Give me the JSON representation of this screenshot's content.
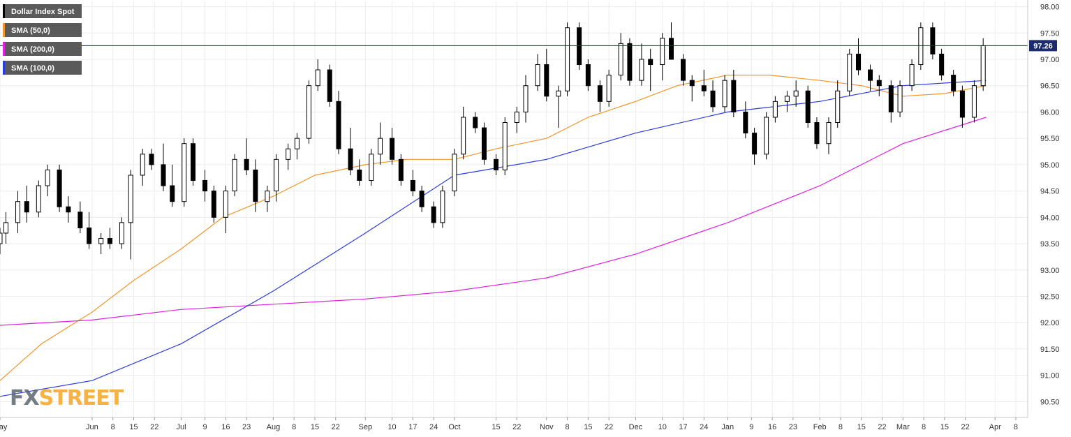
{
  "chart_data": {
    "type": "candlestick",
    "title": "",
    "xlabel": "",
    "ylabel": "",
    "ylim": [
      90.2,
      98.1
    ],
    "y_ticks": [
      "98.00",
      "97.50",
      "97.00",
      "96.50",
      "96.00",
      "95.50",
      "95.00",
      "94.50",
      "94.00",
      "93.50",
      "93.00",
      "92.50",
      "92.00",
      "91.50",
      "91.00",
      "90.50"
    ],
    "y_tick_values": [
      98.0,
      97.5,
      97.0,
      96.5,
      96.0,
      95.5,
      95.0,
      94.5,
      94.0,
      93.5,
      93.0,
      92.5,
      92.0,
      91.5,
      91.0,
      90.5
    ],
    "x_ticks": [
      {
        "label": "May",
        "date": "2018-05-01"
      },
      {
        "label": "Jun",
        "date": "2018-06-01"
      },
      {
        "label": "8",
        "date": "2018-06-08"
      },
      {
        "label": "15",
        "date": "2018-06-15"
      },
      {
        "label": "22",
        "date": "2018-06-22"
      },
      {
        "label": "Jul",
        "date": "2018-07-01"
      },
      {
        "label": "9",
        "date": "2018-07-09"
      },
      {
        "label": "16",
        "date": "2018-07-16"
      },
      {
        "label": "23",
        "date": "2018-07-23"
      },
      {
        "label": "Aug",
        "date": "2018-08-01"
      },
      {
        "label": "8",
        "date": "2018-08-08"
      },
      {
        "label": "15",
        "date": "2018-08-15"
      },
      {
        "label": "22",
        "date": "2018-08-22"
      },
      {
        "label": "Sep",
        "date": "2018-09-01"
      },
      {
        "label": "10",
        "date": "2018-09-10"
      },
      {
        "label": "17",
        "date": "2018-09-17"
      },
      {
        "label": "24",
        "date": "2018-09-24"
      },
      {
        "label": "Oct",
        "date": "2018-10-01"
      },
      {
        "label": "15",
        "date": "2018-10-15"
      },
      {
        "label": "22",
        "date": "2018-10-22"
      },
      {
        "label": "Nov",
        "date": "2018-11-01"
      },
      {
        "label": "8",
        "date": "2018-11-08"
      },
      {
        "label": "15",
        "date": "2018-11-15"
      },
      {
        "label": "22",
        "date": "2018-11-22"
      },
      {
        "label": "Dec",
        "date": "2018-12-01"
      },
      {
        "label": "10",
        "date": "2018-12-10"
      },
      {
        "label": "17",
        "date": "2018-12-17"
      },
      {
        "label": "24",
        "date": "2018-12-24"
      },
      {
        "label": "Jan",
        "date": "2019-01-01"
      },
      {
        "label": "9",
        "date": "2019-01-09"
      },
      {
        "label": "16",
        "date": "2019-01-16"
      },
      {
        "label": "23",
        "date": "2019-01-23"
      },
      {
        "label": "Feb",
        "date": "2019-02-01"
      },
      {
        "label": "8",
        "date": "2019-02-08"
      },
      {
        "label": "15",
        "date": "2019-02-15"
      },
      {
        "label": "22",
        "date": "2019-02-22"
      },
      {
        "label": "Mar",
        "date": "2019-03-01"
      },
      {
        "label": "8",
        "date": "2019-03-08"
      },
      {
        "label": "15",
        "date": "2019-03-15"
      },
      {
        "label": "22",
        "date": "2019-03-22"
      },
      {
        "label": "Apr",
        "date": "2019-04-01"
      },
      {
        "label": "8",
        "date": "2019-04-08"
      }
    ],
    "x_range": [
      "2018-05-01",
      "2019-04-12"
    ],
    "grid": true,
    "legend_position": "top-left",
    "current_price": 97.26,
    "current_price_label": "97.26",
    "series": [
      {
        "name": "Dollar Index Spot",
        "type": "candlestick",
        "color": "#000000",
        "points": [
          [
            "2018-05-01",
            93.5,
            93.8,
            93.3,
            93.7
          ],
          [
            "2018-05-03",
            93.7,
            94.1,
            93.5,
            93.9
          ],
          [
            "2018-05-07",
            93.9,
            94.5,
            93.7,
            94.3
          ],
          [
            "2018-05-10",
            94.3,
            94.6,
            93.9,
            94.1
          ],
          [
            "2018-05-14",
            94.1,
            94.7,
            94.0,
            94.6
          ],
          [
            "2018-05-17",
            94.6,
            95.0,
            94.4,
            94.9
          ],
          [
            "2018-05-21",
            94.9,
            95.0,
            94.1,
            94.2
          ],
          [
            "2018-05-24",
            94.2,
            94.4,
            93.9,
            94.1
          ],
          [
            "2018-05-28",
            94.1,
            94.3,
            93.7,
            93.8
          ],
          [
            "2018-05-31",
            93.8,
            94.1,
            93.4,
            93.5
          ],
          [
            "2018-06-04",
            93.5,
            93.7,
            93.3,
            93.6
          ],
          [
            "2018-06-07",
            93.6,
            93.8,
            93.4,
            93.5
          ],
          [
            "2018-06-11",
            93.5,
            94.0,
            93.4,
            93.9
          ],
          [
            "2018-06-14",
            93.9,
            94.9,
            93.2,
            94.8
          ],
          [
            "2018-06-18",
            94.8,
            95.3,
            94.6,
            95.2
          ],
          [
            "2018-06-21",
            95.2,
            95.3,
            94.9,
            95.0
          ],
          [
            "2018-06-25",
            95.0,
            95.4,
            94.5,
            94.6
          ],
          [
            "2018-06-28",
            94.6,
            95.0,
            94.2,
            94.3
          ],
          [
            "2018-07-02",
            94.3,
            95.5,
            94.2,
            95.4
          ],
          [
            "2018-07-05",
            95.4,
            95.5,
            94.6,
            94.7
          ],
          [
            "2018-07-09",
            94.7,
            94.9,
            94.3,
            94.5
          ],
          [
            "2018-07-12",
            94.5,
            94.6,
            93.9,
            94.0
          ],
          [
            "2018-07-16",
            94.0,
            94.6,
            93.7,
            94.5
          ],
          [
            "2018-07-19",
            94.5,
            95.2,
            94.4,
            95.1
          ],
          [
            "2018-07-23",
            95.1,
            95.5,
            94.8,
            94.9
          ],
          [
            "2018-07-26",
            94.9,
            95.1,
            94.1,
            94.3
          ],
          [
            "2018-07-30",
            94.3,
            94.6,
            94.1,
            94.5
          ],
          [
            "2018-08-02",
            94.5,
            95.2,
            94.3,
            95.1
          ],
          [
            "2018-08-06",
            95.1,
            95.4,
            94.9,
            95.3
          ],
          [
            "2018-08-09",
            95.3,
            95.6,
            95.1,
            95.5
          ],
          [
            "2018-08-13",
            95.5,
            96.6,
            95.4,
            96.5
          ],
          [
            "2018-08-16",
            96.5,
            97.0,
            96.4,
            96.8
          ],
          [
            "2018-08-20",
            96.8,
            96.9,
            96.1,
            96.2
          ],
          [
            "2018-08-23",
            96.2,
            96.4,
            95.2,
            95.3
          ],
          [
            "2018-08-27",
            95.3,
            95.7,
            94.8,
            94.9
          ],
          [
            "2018-08-30",
            94.9,
            95.1,
            94.6,
            94.7
          ],
          [
            "2018-09-03",
            94.7,
            95.3,
            94.6,
            95.2
          ],
          [
            "2018-09-06",
            95.2,
            95.8,
            95.0,
            95.5
          ],
          [
            "2018-09-10",
            95.5,
            95.7,
            95.0,
            95.1
          ],
          [
            "2018-09-13",
            95.1,
            95.2,
            94.6,
            94.7
          ],
          [
            "2018-09-17",
            94.7,
            94.9,
            94.4,
            94.5
          ],
          [
            "2018-09-20",
            94.5,
            94.6,
            94.1,
            94.2
          ],
          [
            "2018-09-24",
            94.2,
            94.3,
            93.8,
            93.9
          ],
          [
            "2018-09-27",
            93.9,
            94.6,
            93.8,
            94.5
          ],
          [
            "2018-10-01",
            94.5,
            95.3,
            94.4,
            95.2
          ],
          [
            "2018-10-04",
            95.2,
            96.1,
            95.1,
            95.9
          ],
          [
            "2018-10-08",
            95.9,
            96.0,
            95.6,
            95.7
          ],
          [
            "2018-10-11",
            95.7,
            95.8,
            95.0,
            95.1
          ],
          [
            "2018-10-15",
            95.1,
            95.2,
            94.8,
            94.9
          ],
          [
            "2018-10-18",
            94.9,
            95.9,
            94.8,
            95.8
          ],
          [
            "2018-10-22",
            95.8,
            96.1,
            95.6,
            96.0
          ],
          [
            "2018-10-25",
            96.0,
            96.7,
            95.8,
            96.5
          ],
          [
            "2018-10-29",
            96.5,
            97.1,
            96.4,
            96.9
          ],
          [
            "2018-11-01",
            96.9,
            97.2,
            96.2,
            96.3
          ],
          [
            "2018-11-05",
            96.3,
            96.5,
            95.7,
            96.4
          ],
          [
            "2018-11-08",
            96.4,
            97.7,
            96.3,
            97.6
          ],
          [
            "2018-11-12",
            97.6,
            97.7,
            96.8,
            96.9
          ],
          [
            "2018-11-15",
            96.9,
            97.0,
            96.4,
            96.5
          ],
          [
            "2018-11-19",
            96.5,
            96.6,
            96.0,
            96.2
          ],
          [
            "2018-11-22",
            96.2,
            96.8,
            96.1,
            96.7
          ],
          [
            "2018-11-26",
            96.7,
            97.5,
            96.6,
            97.3
          ],
          [
            "2018-11-29",
            97.3,
            97.4,
            96.5,
            96.6
          ],
          [
            "2018-12-03",
            96.6,
            97.3,
            96.5,
            97.0
          ],
          [
            "2018-12-06",
            97.0,
            97.2,
            96.4,
            96.9
          ],
          [
            "2018-12-10",
            96.9,
            97.5,
            96.6,
            97.4
          ],
          [
            "2018-12-13",
            97.4,
            97.7,
            97.1,
            97.0
          ],
          [
            "2018-12-17",
            97.0,
            97.1,
            96.5,
            96.6
          ],
          [
            "2018-12-20",
            96.6,
            96.7,
            96.2,
            96.5
          ],
          [
            "2018-12-24",
            96.5,
            96.8,
            96.3,
            96.4
          ],
          [
            "2018-12-27",
            96.4,
            96.6,
            96.0,
            96.1
          ],
          [
            "2018-12-31",
            96.1,
            96.7,
            96.0,
            96.6
          ],
          [
            "2019-01-03",
            96.6,
            96.8,
            95.9,
            96.0
          ],
          [
            "2019-01-07",
            96.0,
            96.2,
            95.5,
            95.6
          ],
          [
            "2019-01-10",
            95.6,
            95.7,
            95.0,
            95.2
          ],
          [
            "2019-01-14",
            95.2,
            96.0,
            95.1,
            95.9
          ],
          [
            "2019-01-17",
            95.9,
            96.3,
            95.8,
            96.2
          ],
          [
            "2019-01-21",
            96.2,
            96.4,
            96.0,
            96.3
          ],
          [
            "2019-01-24",
            96.3,
            96.6,
            96.1,
            96.4
          ],
          [
            "2019-01-28",
            96.4,
            96.5,
            95.7,
            95.8
          ],
          [
            "2019-01-31",
            95.8,
            95.9,
            95.3,
            95.4
          ],
          [
            "2019-02-04",
            95.4,
            95.9,
            95.2,
            95.8
          ],
          [
            "2019-02-07",
            95.8,
            96.6,
            95.7,
            96.4
          ],
          [
            "2019-02-11",
            96.4,
            97.2,
            96.3,
            97.1
          ],
          [
            "2019-02-14",
            97.1,
            97.4,
            96.7,
            96.8
          ],
          [
            "2019-02-18",
            96.8,
            96.9,
            96.4,
            96.6
          ],
          [
            "2019-02-21",
            96.6,
            96.7,
            96.3,
            96.5
          ],
          [
            "2019-02-25",
            96.5,
            96.6,
            95.8,
            96.0
          ],
          [
            "2019-02-28",
            96.0,
            96.6,
            95.9,
            96.5
          ],
          [
            "2019-03-04",
            96.5,
            97.0,
            96.4,
            96.9
          ],
          [
            "2019-03-07",
            96.9,
            97.7,
            96.8,
            97.6
          ],
          [
            "2019-03-11",
            97.6,
            97.7,
            97.0,
            97.1
          ],
          [
            "2019-03-14",
            97.1,
            97.2,
            96.6,
            96.7
          ],
          [
            "2019-03-18",
            96.7,
            96.8,
            96.3,
            96.4
          ],
          [
            "2019-03-21",
            96.4,
            96.5,
            95.7,
            95.9
          ],
          [
            "2019-03-25",
            95.9,
            96.6,
            95.8,
            96.5
          ],
          [
            "2019-03-28",
            96.5,
            97.4,
            96.4,
            97.26
          ]
        ]
      },
      {
        "name": "SMA (50,0)",
        "type": "line",
        "color": "#f0962a",
        "points": [
          [
            "2018-05-01",
            90.9
          ],
          [
            "2018-05-15",
            91.6
          ],
          [
            "2018-06-01",
            92.2
          ],
          [
            "2018-06-15",
            92.8
          ],
          [
            "2018-07-01",
            93.4
          ],
          [
            "2018-07-15",
            94.0
          ],
          [
            "2018-08-01",
            94.4
          ],
          [
            "2018-08-15",
            94.8
          ],
          [
            "2018-09-01",
            95.0
          ],
          [
            "2018-09-15",
            95.1
          ],
          [
            "2018-10-01",
            95.1
          ],
          [
            "2018-10-15",
            95.3
          ],
          [
            "2018-11-01",
            95.5
          ],
          [
            "2018-11-15",
            95.9
          ],
          [
            "2018-12-01",
            96.2
          ],
          [
            "2018-12-15",
            96.5
          ],
          [
            "2019-01-01",
            96.7
          ],
          [
            "2019-01-15",
            96.7
          ],
          [
            "2019-02-01",
            96.6
          ],
          [
            "2019-02-15",
            96.5
          ],
          [
            "2019-03-01",
            96.3
          ],
          [
            "2019-03-15",
            96.35
          ],
          [
            "2019-03-29",
            96.5
          ]
        ]
      },
      {
        "name": "SMA (200,0)",
        "type": "line",
        "color": "#e020e0",
        "points": [
          [
            "2018-05-01",
            91.95
          ],
          [
            "2018-06-01",
            92.05
          ],
          [
            "2018-07-01",
            92.25
          ],
          [
            "2018-08-01",
            92.35
          ],
          [
            "2018-09-01",
            92.45
          ],
          [
            "2018-10-01",
            92.6
          ],
          [
            "2018-11-01",
            92.85
          ],
          [
            "2018-12-01",
            93.3
          ],
          [
            "2019-01-01",
            93.9
          ],
          [
            "2019-02-01",
            94.6
          ],
          [
            "2019-03-01",
            95.4
          ],
          [
            "2019-03-29",
            95.9
          ]
        ]
      },
      {
        "name": "SMA (100,0)",
        "type": "line",
        "color": "#2a3ce0",
        "points": [
          [
            "2018-05-01",
            90.6
          ],
          [
            "2018-06-01",
            90.9
          ],
          [
            "2018-07-01",
            91.6
          ],
          [
            "2018-08-01",
            92.6
          ],
          [
            "2018-09-01",
            93.7
          ],
          [
            "2018-10-01",
            94.8
          ],
          [
            "2018-11-01",
            95.1
          ],
          [
            "2018-12-01",
            95.6
          ],
          [
            "2019-01-01",
            96.0
          ],
          [
            "2019-02-01",
            96.2
          ],
          [
            "2019-03-01",
            96.5
          ],
          [
            "2019-03-29",
            96.6
          ]
        ]
      }
    ]
  },
  "watermark": {
    "part1": "FX",
    "part2": "STREET",
    "color1": "#5c6672",
    "color2": "#f5a623"
  }
}
